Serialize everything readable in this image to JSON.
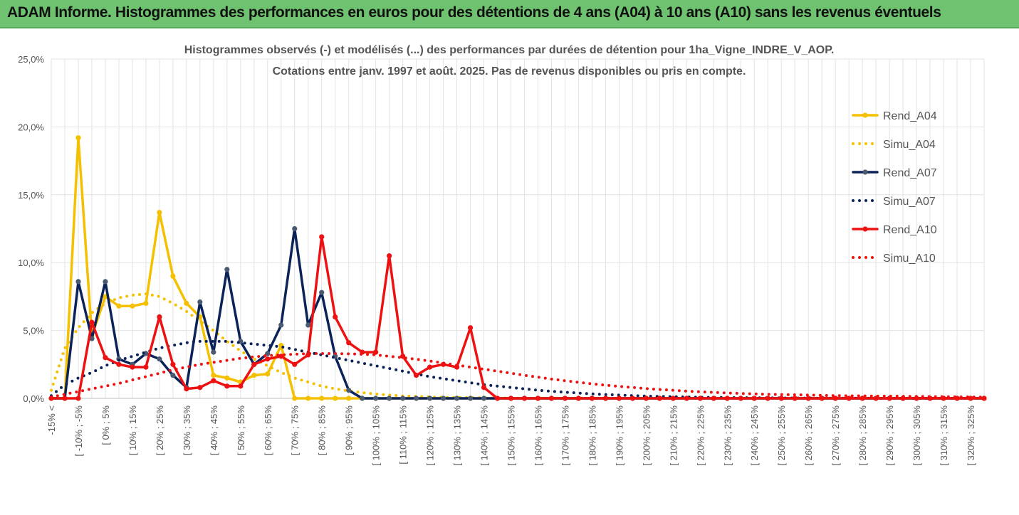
{
  "header": {
    "title": "ADAM Informe. Histogrammes des performances en euros pour des détentions de 4 ans (A04) à 10 ans (A10) sans les revenus éventuels"
  },
  "colors": {
    "A04": "#f5c000",
    "A07": "#0b2358",
    "A07_marker": "#4a5a70",
    "A10": "#ee1111",
    "header_bg": "#6fc26f"
  },
  "chart_data": {
    "type": "line",
    "title": "Histogrammes observés (-) et modélisés (...) des performances par durées de détention pour 1ha_Vigne_INDRE_V_AOP.",
    "subtitle": "Cotations entre janv. 1997 et août. 2025. Pas de revenus disponibles ou pris en compte.",
    "ylim": [
      0,
      25
    ],
    "yticks": [
      "0,0%",
      "5,0%",
      "10,0%",
      "15,0%",
      "20,0%",
      "25,0%"
    ],
    "grid": true,
    "legend_position": "right",
    "categories": [
      "-15% <",
      "[ -15% ; -10%",
      "[ -10% ; -5%",
      "[ -5% ; 0%",
      "[ 0% ; 5%",
      "[ 5% ; 10%",
      "[ 10% ; 15%",
      "[ 15% ; 20%",
      "[ 20% ; 25%",
      "[ 25% ; 30%",
      "[ 30% ; 35%",
      "[ 35% ; 40%",
      "[ 40% ; 45%",
      "[ 45% ; 50%",
      "[ 50% ; 55%",
      "[ 55% ; 60%",
      "[ 60% ; 65%",
      "[ 65% ; 70%",
      "[ 70% ; 75%",
      "[ 75% ; 80%",
      "[ 80% ; 85%",
      "[ 85% ; 90%",
      "[ 90% ; 95%",
      "[ 95% ; 100%",
      "[ 100% ; 105%",
      "[ 105% ; 110%",
      "[ 110% ; 115%",
      "[ 115% ; 120%",
      "[ 120% ; 125%",
      "[ 125% ; 130%",
      "[ 130% ; 135%",
      "[ 135% ; 140%",
      "[ 140% ; 145%",
      "[ 145% ; 150%",
      "[ 150% ; 155%",
      "[ 155% ; 160%",
      "[ 160% ; 165%",
      "[ 165% ; 170%",
      "[ 170% ; 175%",
      "[ 175% ; 180%",
      "[ 180% ; 185%",
      "[ 185% ; 190%",
      "[ 190% ; 195%",
      "[ 195% ; 200%",
      "[ 200% ; 205%",
      "[ 205% ; 210%",
      "[ 210% ; 215%",
      "[ 215% ; 220%",
      "[ 220% ; 225%",
      "[ 225% ; 230%",
      "[ 230% ; 235%",
      "[ 235% ; 240%",
      "[ 240% ; 245%",
      "[ 245% ; 250%",
      "[ 250% ; 255%",
      "[ 255% ; 260%",
      "[ 260% ; 265%",
      "[ 265% ; 270%",
      "[ 270% ; 275%",
      "[ 275% ; 280%",
      "[ 280% ; 285%",
      "[ 285% ; 290%",
      "[ 290% ; 295%",
      "[ 295% ; 300%",
      "[ 300% ; 305%",
      "[ 305% ; 310%",
      "[ 310% ; 315%",
      "[ 315% ; 320%",
      "[ 320% ; 325%",
      "[ 325% ; 330%"
    ],
    "series": [
      {
        "name": "Rend_A04",
        "style": "solid",
        "color": "#f5c000",
        "values": [
          0,
          0,
          19.2,
          4.6,
          7.5,
          6.8,
          6.8,
          7.0,
          13.7,
          9.0,
          7.0,
          6.0,
          1.7,
          1.5,
          1.2,
          1.7,
          1.8,
          3.9,
          0,
          0,
          0,
          0,
          0,
          0,
          0,
          0,
          0,
          0,
          0,
          0,
          0,
          0,
          0,
          0,
          0,
          0,
          0,
          0,
          0,
          0,
          0,
          0,
          0,
          0,
          0,
          0,
          0,
          0,
          0,
          0,
          0,
          0,
          0,
          0,
          0,
          0,
          0,
          0,
          0,
          0,
          0,
          0,
          0,
          0,
          0,
          0,
          0,
          0,
          0,
          0
        ]
      },
      {
        "name": "Simu_A04",
        "style": "dotted",
        "color": "#f5c000",
        "values": [
          0.6,
          3.7,
          5.2,
          6.3,
          7.0,
          7.4,
          7.6,
          7.7,
          7.5,
          7.0,
          6.4,
          5.7,
          5.0,
          4.2,
          3.5,
          2.9,
          2.4,
          1.9,
          1.5,
          1.2,
          0.9,
          0.7,
          0.55,
          0.42,
          0.32,
          0.24,
          0.18,
          0.14,
          0.1,
          0.08,
          0.06,
          0.05,
          0.04,
          0.03,
          0.02,
          0.02,
          0.01,
          0.01,
          0.01,
          0.01,
          0,
          0,
          0,
          0,
          0,
          0,
          0,
          0,
          0,
          0,
          0,
          0,
          0,
          0,
          0,
          0,
          0,
          0,
          0,
          0,
          0,
          0,
          0,
          0,
          0,
          0,
          0,
          0,
          0,
          0
        ]
      },
      {
        "name": "Rend_A07",
        "style": "solid",
        "color": "#0b2358",
        "values": [
          0,
          0,
          8.6,
          4.4,
          8.6,
          2.9,
          2.5,
          3.3,
          2.9,
          1.7,
          0.8,
          7.1,
          3.4,
          9.5,
          4.2,
          2.5,
          3.3,
          5.4,
          12.5,
          5.4,
          7.8,
          3.1,
          0.6,
          0,
          0,
          0,
          0,
          0,
          0,
          0,
          0,
          0,
          0,
          0,
          0,
          0,
          0,
          0,
          0,
          0,
          0,
          0,
          0,
          0,
          0,
          0,
          0,
          0,
          0,
          0,
          0,
          0,
          0,
          0,
          0,
          0,
          0,
          0,
          0,
          0,
          0,
          0,
          0,
          0,
          0,
          0,
          0,
          0,
          0,
          0
        ]
      },
      {
        "name": "Simu_A07",
        "style": "dotted",
        "color": "#0b2358",
        "values": [
          0.2,
          1.0,
          1.5,
          1.9,
          2.4,
          2.8,
          3.1,
          3.4,
          3.7,
          3.9,
          4.1,
          4.2,
          4.2,
          4.2,
          4.1,
          4.0,
          3.9,
          3.8,
          3.6,
          3.4,
          3.2,
          3.0,
          2.8,
          2.6,
          2.4,
          2.2,
          2.0,
          1.8,
          1.6,
          1.45,
          1.3,
          1.15,
          1.0,
          0.9,
          0.8,
          0.7,
          0.6,
          0.52,
          0.45,
          0.39,
          0.33,
          0.28,
          0.24,
          0.2,
          0.17,
          0.14,
          0.12,
          0.1,
          0.08,
          0.07,
          0.06,
          0.05,
          0.04,
          0.03,
          0.03,
          0.02,
          0.02,
          0.01,
          0.01,
          0.01,
          0.01,
          0,
          0,
          0,
          0,
          0,
          0,
          0,
          0,
          0
        ]
      },
      {
        "name": "Rend_A10",
        "style": "solid",
        "color": "#ee1111",
        "values": [
          0,
          0,
          0,
          5.6,
          3.0,
          2.5,
          2.3,
          2.3,
          6.0,
          2.5,
          0.7,
          0.8,
          1.3,
          0.9,
          0.9,
          2.5,
          2.9,
          3.1,
          2.5,
          3.2,
          11.9,
          6.0,
          4.1,
          3.4,
          3.4,
          10.5,
          3.1,
          1.7,
          2.3,
          2.5,
          2.3,
          5.2,
          0.8,
          0,
          0,
          0,
          0,
          0,
          0,
          0,
          0,
          0,
          0,
          0,
          0,
          0,
          0,
          0,
          0,
          0,
          0,
          0,
          0,
          0,
          0,
          0,
          0,
          0,
          0,
          0,
          0,
          0,
          0,
          0,
          0,
          0,
          0,
          0,
          0,
          0
        ]
      },
      {
        "name": "Simu_A10",
        "style": "dotted",
        "color": "#ee1111",
        "values": [
          0.1,
          0.3,
          0.5,
          0.7,
          0.9,
          1.1,
          1.35,
          1.6,
          1.85,
          2.1,
          2.3,
          2.5,
          2.65,
          2.8,
          2.95,
          3.05,
          3.15,
          3.2,
          3.25,
          3.3,
          3.3,
          3.3,
          3.28,
          3.25,
          3.2,
          3.1,
          3.0,
          2.88,
          2.75,
          2.6,
          2.45,
          2.3,
          2.15,
          2.0,
          1.85,
          1.7,
          1.56,
          1.42,
          1.3,
          1.18,
          1.07,
          0.97,
          0.88,
          0.8,
          0.72,
          0.65,
          0.59,
          0.53,
          0.48,
          0.44,
          0.4,
          0.36,
          0.33,
          0.3,
          0.28,
          0.26,
          0.24,
          0.22,
          0.2,
          0.19,
          0.18,
          0.17,
          0.16,
          0.15,
          0.14,
          0.13,
          0.12,
          0.11,
          0.1,
          0.09
        ]
      }
    ],
    "legend": [
      "Rend_A04",
      "Simu_A04",
      "Rend_A07",
      "Simu_A07",
      "Rend_A10",
      "Simu_A10"
    ]
  }
}
